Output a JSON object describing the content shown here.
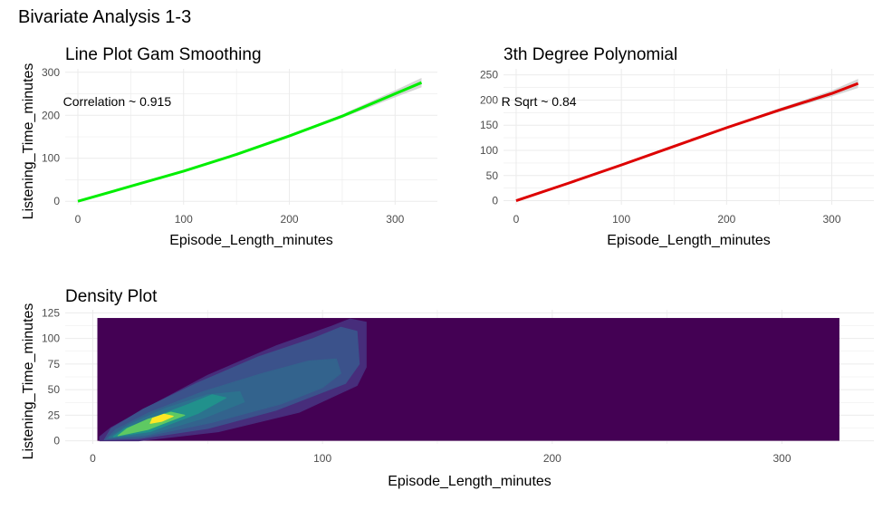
{
  "figure": {
    "title": "Bivariate Analysis 1-3"
  },
  "colors": {
    "grid": "#ebebeb",
    "band": "#d0d0d0",
    "tick_text": "#4d4d4d",
    "label_text": "#000000",
    "density_low": "#440154",
    "line_green": "#00ee00",
    "line_red": "#dd0000"
  },
  "chart_data": [
    {
      "id": "line-gam",
      "type": "line",
      "title": "Line Plot Gam Smoothing",
      "xlabel": "Episode_Length_minutes",
      "ylabel": "Listening_Time_minutes",
      "xlim": [
        -12,
        340
      ],
      "ylim": [
        -8,
        308
      ],
      "xticks": [
        0,
        100,
        200,
        300
      ],
      "yticks": [
        0,
        100,
        200,
        300
      ],
      "grid": true,
      "annotation": {
        "text": "Correlation ~ 0.915",
        "x": -14,
        "y": 222
      },
      "series": [
        {
          "color": "line_green",
          "x": [
            0,
            50,
            100,
            150,
            200,
            250,
            300,
            325
          ],
          "y": [
            0,
            35,
            70,
            109,
            152,
            198,
            250,
            276
          ],
          "band": [
            1,
            1,
            1,
            1.5,
            2,
            4,
            8,
            11
          ]
        }
      ]
    },
    {
      "id": "poly3",
      "type": "line",
      "title": "3th Degree Polynomial",
      "xlabel": "Episode_Length_minutes",
      "ylabel": "",
      "xlim": [
        -12,
        340
      ],
      "ylim": [
        -8,
        262
      ],
      "xticks": [
        0,
        100,
        200,
        300
      ],
      "yticks": [
        0,
        50,
        100,
        150,
        200,
        250
      ],
      "grid": true,
      "annotation": {
        "text": "R Sqrt ~ 0.84",
        "x": -14,
        "y": 188
      },
      "series": [
        {
          "color": "line_red",
          "x": [
            0,
            50,
            100,
            150,
            200,
            250,
            300,
            325
          ],
          "y": [
            0,
            35,
            71,
            108,
            145,
            180,
            213,
            233
          ],
          "band": [
            1,
            1,
            1,
            1.5,
            2,
            3.5,
            6,
            9
          ]
        }
      ]
    },
    {
      "id": "density",
      "type": "heatmap",
      "title": "Density Plot",
      "xlabel": "Episode_Length_minutes",
      "ylabel": "Listening_Time_minutes",
      "xlim": [
        -12,
        340
      ],
      "ylim": [
        -3,
        128
      ],
      "xticks": [
        0,
        100,
        200,
        300
      ],
      "yticks": [
        0,
        25,
        50,
        75,
        100,
        125
      ],
      "grid": true,
      "fill_range": {
        "x": [
          2,
          325
        ],
        "y": [
          0,
          120
        ]
      },
      "levels": [
        {
          "color": "#472d7b",
          "points": [
            [
              3,
              0
            ],
            [
              20,
              0
            ],
            [
              55,
              9
            ],
            [
              90,
              28
            ],
            [
              115,
              54
            ],
            [
              119,
              72
            ],
            [
              119,
              116
            ],
            [
              112,
              119
            ],
            [
              104,
              112
            ],
            [
              80,
              93
            ],
            [
              50,
              64
            ],
            [
              25,
              34
            ],
            [
              8,
              13
            ],
            [
              3,
              4
            ]
          ]
        },
        {
          "color": "#3b528b",
          "points": [
            [
              5,
              1
            ],
            [
              20,
              2
            ],
            [
              50,
              12
            ],
            [
              80,
              30
            ],
            [
              110,
              56
            ],
            [
              116,
              75
            ],
            [
              115,
              107
            ],
            [
              108,
              111
            ],
            [
              96,
              100
            ],
            [
              72,
              82
            ],
            [
              45,
              56
            ],
            [
              22,
              31
            ],
            [
              8,
              12
            ]
          ]
        },
        {
          "color": "#33638d",
          "points": [
            [
              6,
              2
            ],
            [
              22,
              4
            ],
            [
              52,
              18
            ],
            [
              82,
              36
            ],
            [
              100,
              52
            ],
            [
              108,
              66
            ],
            [
              106,
              80
            ],
            [
              94,
              78
            ],
            [
              74,
              66
            ],
            [
              48,
              48
            ],
            [
              25,
              28
            ],
            [
              10,
              11
            ]
          ]
        },
        {
          "color": "#2c728e",
          "points": [
            [
              7,
              3
            ],
            [
              24,
              6
            ],
            [
              48,
              22
            ],
            [
              66,
              38
            ],
            [
              64,
              48
            ],
            [
              50,
              45
            ],
            [
              32,
              32
            ],
            [
              16,
              16
            ]
          ]
        },
        {
          "color": "#21918c",
          "points": [
            [
              9,
              4
            ],
            [
              25,
              9
            ],
            [
              46,
              27
            ],
            [
              58,
              42
            ],
            [
              52,
              45
            ],
            [
              42,
              36
            ],
            [
              28,
              24
            ],
            [
              14,
              12
            ]
          ]
        },
        {
          "color": "#5ec962",
          "points": [
            [
              11,
              5
            ],
            [
              24,
              11
            ],
            [
              40,
              25
            ],
            [
              34,
              28
            ],
            [
              24,
              21
            ],
            [
              15,
              12
            ]
          ]
        },
        {
          "color": "#fde725",
          "points": [
            [
              25,
              17
            ],
            [
              30,
              19
            ],
            [
              35,
              24
            ],
            [
              31,
              26
            ],
            [
              26,
              22
            ]
          ]
        }
      ]
    }
  ]
}
